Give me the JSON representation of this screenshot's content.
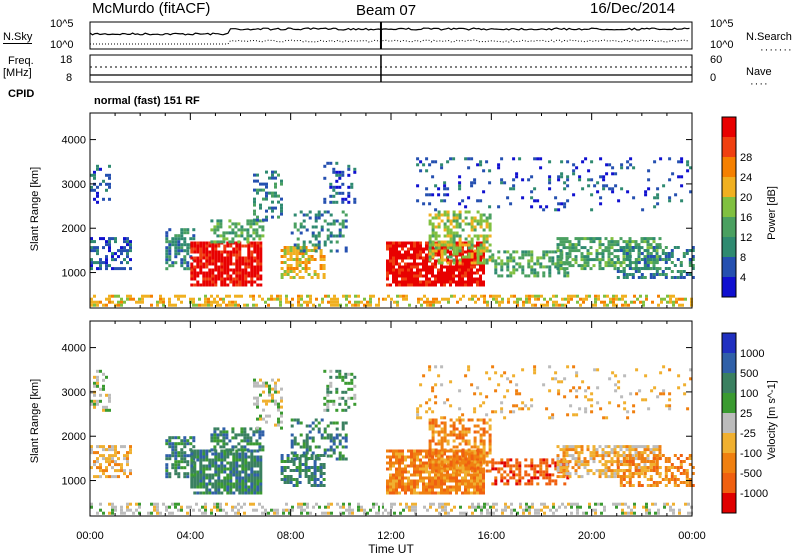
{
  "header": {
    "station": "McMurdo (fitACF)",
    "beam": "Beam 07",
    "date": "16/Dec/2014"
  },
  "top_panels": {
    "nsky_label": "N.Sky",
    "nsearch_label": "N.Search",
    "left_scale_top": "10^5",
    "left_scale_bottom": "10^0",
    "right_scale_top": "10^5",
    "right_scale_bottom": "10^0",
    "freq_label": "Freq.",
    "freq_unit": "[MHz]",
    "freq_top": "18",
    "freq_bottom": "8",
    "nave_label": "Nave",
    "nave_top": "60",
    "nave_bottom": "0",
    "cpid_label": "CPID",
    "cpid_value": "normal (fast) 151 RF"
  },
  "colors": {
    "power": [
      "#1010d0",
      "#2550b0",
      "#2f8a70",
      "#4aa060",
      "#80c040",
      "#f0b020",
      "#f58000",
      "#f04010",
      "#e80000"
    ],
    "velocity": [
      "#2030c0",
      "#3060a8",
      "#3a8060",
      "#3a9a30",
      "#bcbcbc",
      "#f0b030",
      "#f08010",
      "#f06010",
      "#e00000"
    ]
  },
  "chart_data": [
    {
      "type": "heatmap",
      "name": "power",
      "ylabel": "Slant Range [km]",
      "ylim": [
        200,
        4600
      ],
      "yticks": [
        "1000",
        "2000",
        "3000",
        "4000"
      ],
      "colorbar_label": "Power [dB]",
      "colorbar_ticks": [
        "4",
        "8",
        "12",
        "16",
        "20",
        "24",
        "28"
      ]
    },
    {
      "type": "heatmap",
      "name": "velocity",
      "ylabel": "Slant Range [km]",
      "ylim": [
        200,
        4600
      ],
      "yticks": [
        "1000",
        "2000",
        "3000",
        "4000"
      ],
      "colorbar_label": "Velocity [m s^-1]",
      "colorbar_ticks": [
        "1000",
        "500",
        "100",
        "25",
        "-25",
        "-100",
        "-500",
        "-1000"
      ]
    }
  ],
  "xaxis": {
    "label": "Time UT",
    "ticks": [
      "00:00",
      "04:00",
      "08:00",
      "12:00",
      "16:00",
      "20:00",
      "00:00"
    ]
  }
}
